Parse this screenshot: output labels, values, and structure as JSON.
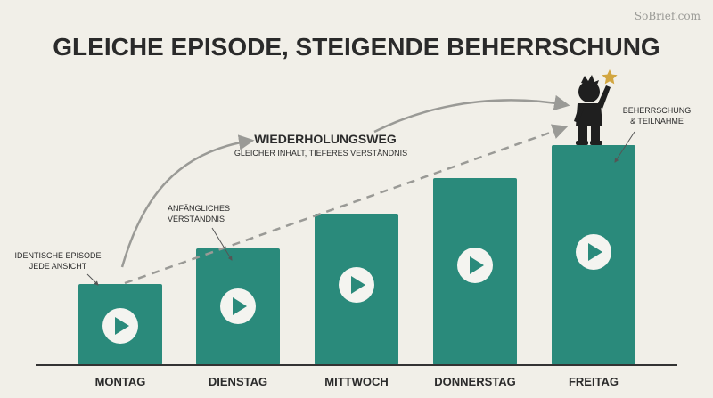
{
  "header": {
    "title": "GLEICHE EPISODE, STEIGENDE BEHERRSCHUNG",
    "watermark": "SoBrief.com"
  },
  "annotations": {
    "identical": [
      "IDENTISCHE EPISODE",
      "JEDE ANSICHT"
    ],
    "initial": [
      "ANFÄNGLICHES",
      "VERSTÄNDNIS"
    ],
    "path_title": "WIEDERHOLUNGSWEG",
    "path_subtitle": "GLEICHER INHALT, TIEFERES VERSTÄNDNIS",
    "mastery": [
      "BEHERRSCHUNG",
      "& TEILNAHME"
    ]
  },
  "days": [
    "MONTAG",
    "DIENSTAG",
    "MITTWOCH",
    "DONNERSTAG",
    "FREITAG"
  ]
}
